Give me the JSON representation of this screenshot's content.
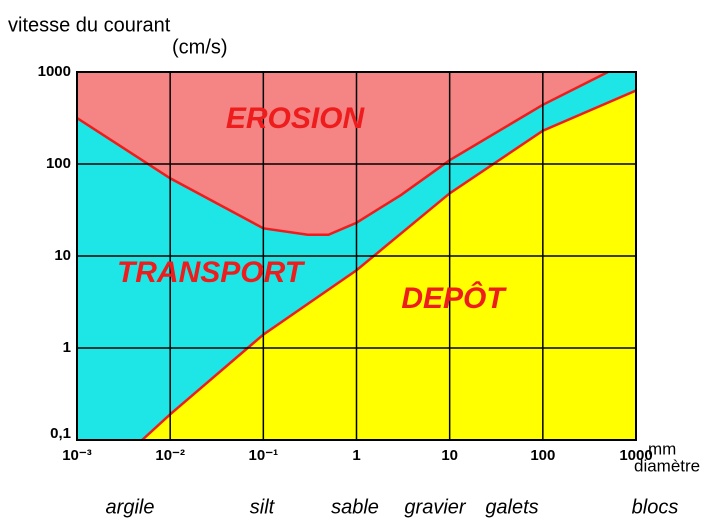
{
  "chart_data": {
    "type": "area",
    "y_label": [
      "vitesse du courant",
      "(cm/s)"
    ],
    "x_label": [
      "mm",
      "diamètre"
    ],
    "xscale": "log",
    "yscale": "log",
    "grid": true,
    "xlim": [
      0.001,
      1000
    ],
    "ylim": [
      0.1,
      1000
    ],
    "xticks": [
      {
        "value": 0.001,
        "label": "10⁻³"
      },
      {
        "value": 0.01,
        "label": "10⁻²"
      },
      {
        "value": 0.1,
        "label": "10⁻¹"
      },
      1,
      10,
      100,
      1000
    ],
    "yticks": [
      {
        "value": 0.1,
        "label": "0,1"
      },
      1,
      10,
      100,
      1000
    ],
    "between_color": "#1ee6e6",
    "series": [
      {
        "color": "#f58484",
        "line_color": "#ee1c1c",
        "fill": "above",
        "x": [
          0.001,
          0.01,
          0.1,
          0.3,
          0.5,
          1,
          3,
          10,
          100,
          500
        ],
        "values": [
          316,
          70,
          20,
          17,
          17,
          23,
          46,
          110,
          440,
          1000
        ]
      },
      {
        "color": "#ffff00",
        "line_color": "#ee1c1c",
        "fill": "below",
        "x": [
          0.005,
          0.01,
          0.1,
          1,
          10,
          100,
          1000
        ],
        "values": [
          0.1,
          0.19,
          1.4,
          7,
          48,
          230,
          630
        ]
      }
    ],
    "annotations": [
      "EROSION",
      "TRANSPORT",
      "DEPÔT"
    ],
    "sediments": [
      "argile",
      "silt",
      "sable",
      "gravier",
      "galets",
      "blocs"
    ]
  }
}
